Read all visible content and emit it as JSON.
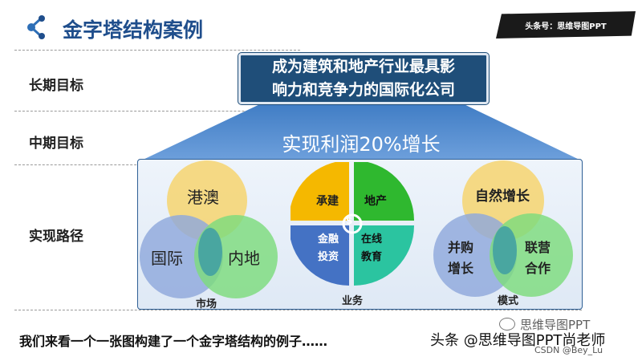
{
  "header": {
    "title": "金字塔结构案例",
    "brand_badge": "头条号：思维导图PPT"
  },
  "rows": {
    "long_term_label": "长期目标",
    "mid_term_label": "中期目标",
    "path_label": "实现路径"
  },
  "pyramid": {
    "top_goal_line1": "成为建筑和地产行业最具影",
    "top_goal_line2": "响力和竞争力的国际化公司",
    "mid_goal": "实现利润20%增长"
  },
  "market": {
    "caption": "市场",
    "circles": [
      "港澳",
      "国际",
      "内地"
    ]
  },
  "business": {
    "caption": "业务",
    "quadrants": [
      "承建",
      "地产",
      "金融\n投资",
      "在线\n教育"
    ],
    "center_symbol": "$"
  },
  "mode": {
    "caption": "模式",
    "circles": [
      "自然增长",
      "并购\n增长",
      "联营\n合作"
    ]
  },
  "footer": {
    "text": "我们来看一个一张图构建了一个金字塔结构的例子……",
    "watermark": "头条 @思维导图PPT尚老师",
    "watermark_logo": "思维导图PPT",
    "csdn": "CSDN @Bey_Lu"
  },
  "colors": {
    "title": "#1f4e8c",
    "goal_box": "#1f4e79",
    "pyramid_blue": "#5b8fd0",
    "yellow": "#f6d36a",
    "blue_circle": "#8fa8dc",
    "green_circle": "#7ddc7d",
    "teal_overlap": "#3f9ea3",
    "orange_quad": "#f5b800",
    "green_quad": "#2fb82f",
    "blue_quad": "#4472c4",
    "teal_quad": "#2bc4a0"
  }
}
